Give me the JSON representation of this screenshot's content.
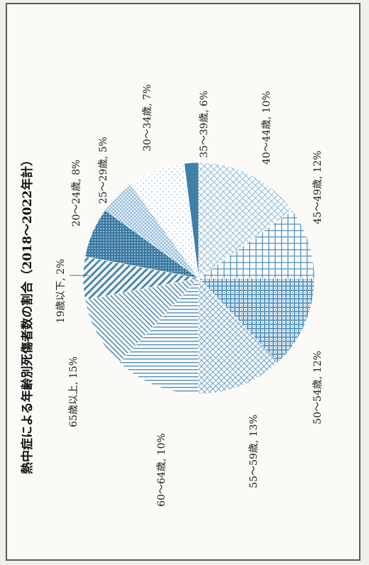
{
  "chart_data": {
    "type": "pie",
    "title": "熱中症による年齢別死傷者数の割合（2018～2022年計）",
    "slices": [
      {
        "label": "19歳以下, 2%",
        "category": "19歳以下",
        "value": 2,
        "color": "#3f7fa8",
        "pattern": "solid"
      },
      {
        "label": "20～24歳, 8%",
        "category": "20～24歳",
        "value": 8,
        "color": "#9cc2dc",
        "pattern": "dots"
      },
      {
        "label": "25～29歳, 5%",
        "category": "25～29歳",
        "value": 5,
        "color": "#8cb9d8",
        "pattern": "hatch"
      },
      {
        "label": "30～34歳, 7%",
        "category": "30～34歳",
        "value": 7,
        "color": "#3a79a3",
        "pattern": "dense-dots"
      },
      {
        "label": "35～39歳, 6%",
        "category": "35～39歳",
        "value": 6,
        "color": "#4a86ad",
        "pattern": "diag"
      },
      {
        "label": "40～44歳, 10%",
        "category": "40～44歳",
        "value": 10,
        "color": "#4f8cb4",
        "pattern": "diag-thin"
      },
      {
        "label": "45～49歳, 12%",
        "category": "45～49歳",
        "value": 12,
        "color": "#5a95bd",
        "pattern": "lines"
      },
      {
        "label": "50～54歳, 12%",
        "category": "50～54歳",
        "value": 12,
        "color": "#6aa2c8",
        "pattern": "diag-cross"
      },
      {
        "label": "55～59歳, 13%",
        "category": "55～59歳",
        "value": 13,
        "color": "#5f99c2",
        "pattern": "dense-grid"
      },
      {
        "label": "60～64歳, 10%",
        "category": "60～64歳",
        "value": 10,
        "color": "#5d98c0",
        "pattern": "grid"
      },
      {
        "label": "65歳以上, 15%",
        "category": "65歳以上",
        "value": 15,
        "color": "#8dbad8",
        "pattern": "crosshatch"
      }
    ]
  }
}
